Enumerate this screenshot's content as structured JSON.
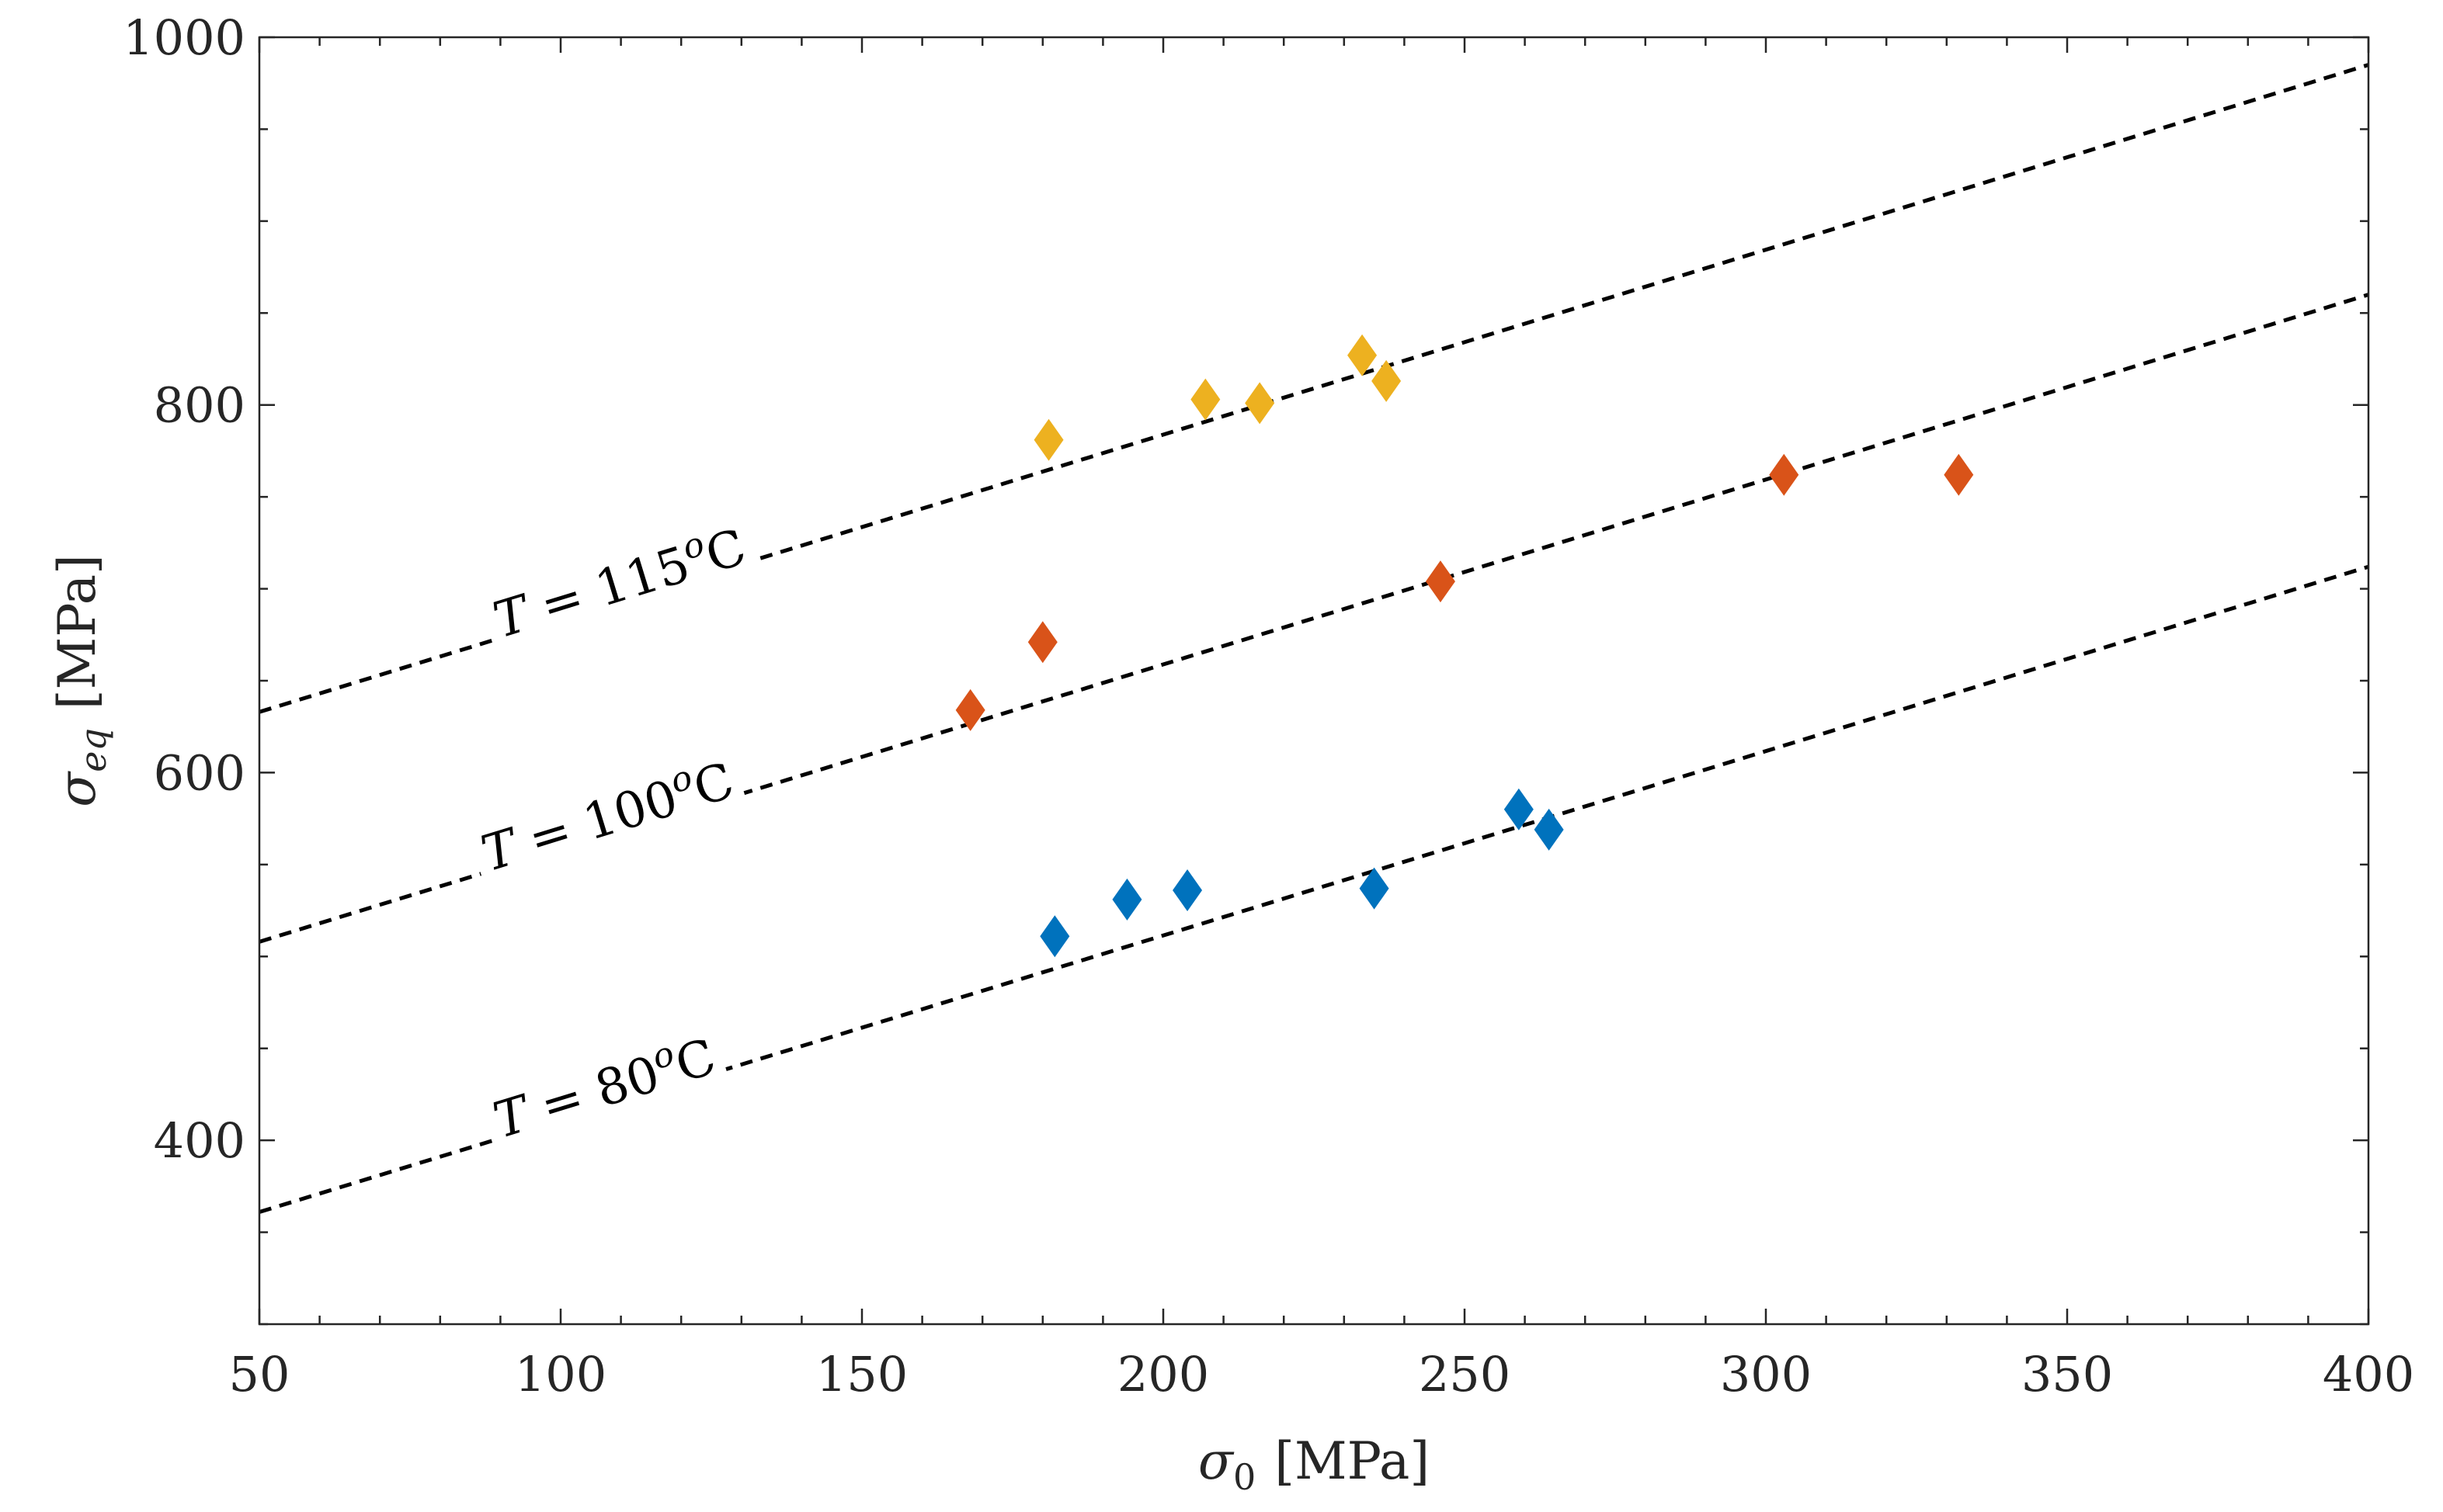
{
  "chart_data": {
    "type": "scatter",
    "title": "",
    "xlabel": {
      "symbol": "σ",
      "subscript": "0",
      "unit": "[MPa]"
    },
    "ylabel": {
      "symbol": "σ",
      "subscript": "eq",
      "unit": "[MPa]"
    },
    "xlim": [
      50,
      400
    ],
    "ylim": [
      300,
      1000
    ],
    "xticks": [
      50,
      100,
      150,
      200,
      250,
      300,
      350,
      400
    ],
    "yticks": [
      400,
      600,
      800,
      1000
    ],
    "xtick_labels": [
      "50",
      "100",
      "150",
      "200",
      "250",
      "300",
      "350",
      "400"
    ],
    "ytick_labels": [
      "400",
      "600",
      "800",
      "1000"
    ],
    "grid": false,
    "series": [
      {
        "name": "T = 115°C",
        "color": "#EDB120",
        "marker": "diamond",
        "points": [
          [
            181,
            781
          ],
          [
            207,
            803
          ],
          [
            216,
            801
          ],
          [
            233,
            827
          ],
          [
            237,
            813
          ]
        ],
        "fit_line": [
          [
            50,
            633
          ],
          [
            400,
            985
          ]
        ],
        "label": {
          "prefix": "T",
          "eq": " = 115",
          "sup": "o",
          "unit": "C"
        }
      },
      {
        "name": "T = 100°C",
        "color": "#D95319",
        "marker": "diamond",
        "points": [
          [
            168,
            634
          ],
          [
            180,
            671
          ],
          [
            246,
            704
          ],
          [
            303,
            762
          ],
          [
            332,
            762
          ]
        ],
        "fit_line": [
          [
            50,
            508
          ],
          [
            400,
            860
          ]
        ],
        "label": {
          "prefix": "T",
          "eq": " = 100",
          "sup": "o",
          "unit": "C"
        }
      },
      {
        "name": "T = 80°C",
        "color": "#0072BD",
        "marker": "diamond",
        "points": [
          [
            182,
            511
          ],
          [
            194,
            531
          ],
          [
            204,
            536
          ],
          [
            235,
            537
          ],
          [
            259,
            580
          ],
          [
            264,
            569
          ]
        ],
        "fit_line": [
          [
            50,
            361
          ],
          [
            400,
            712
          ]
        ],
        "label": {
          "prefix": "T",
          "eq": " = 80",
          "sup": "o",
          "unit": "C"
        }
      }
    ]
  }
}
